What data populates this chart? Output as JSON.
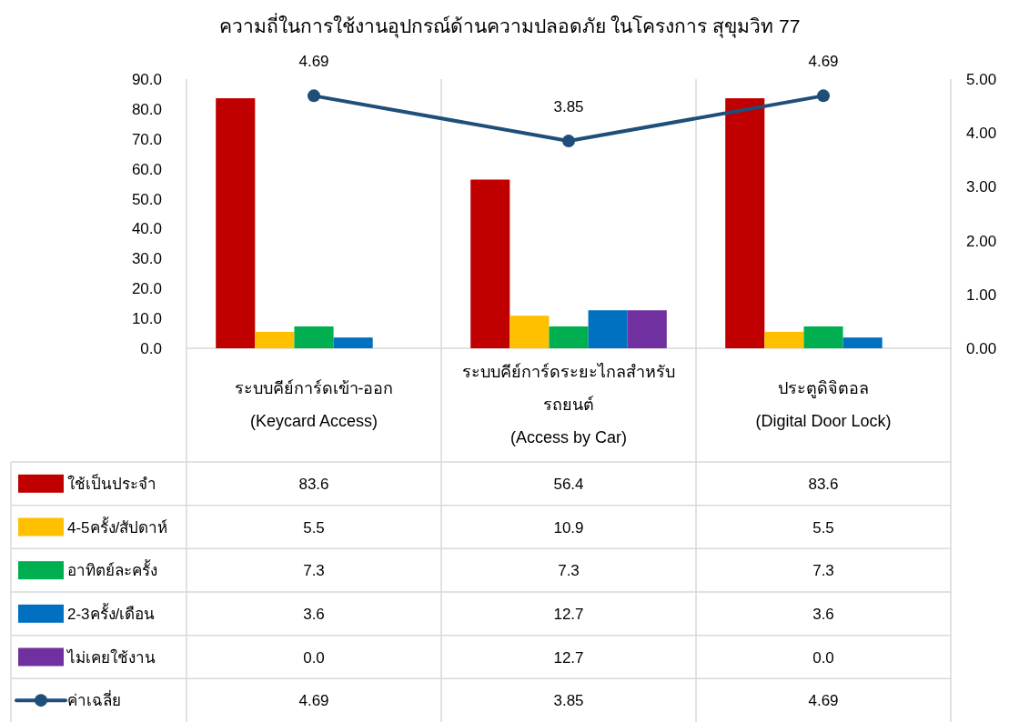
{
  "chart_data": {
    "type": "bar",
    "title": "ความถี่ในการใช้งานอุปกรณ์ด้านความปลอดภัย ในโครงการ สุขุมวิท 77",
    "categories": [
      "ระบบคีย์การ์ดเข้า-ออก\n(Keycard Access)",
      "ระบบคีย์การ์ดระยะไกลสำหรับ\nรถยนต์\n(Access by Car)",
      "ประตูดิจิตอล\n(Digital Door Lock)"
    ],
    "series": [
      {
        "name": "ใช้เป็นประจำ",
        "color": "#c00000",
        "values": [
          83.6,
          56.4,
          83.6
        ],
        "value_labels": [
          "83.6",
          "56.4",
          "83.6"
        ]
      },
      {
        "name": "4-5ครั้ง/สัปดาห์",
        "color": "#ffc000",
        "values": [
          5.5,
          10.9,
          5.5
        ],
        "value_labels": [
          "5.5",
          "10.9",
          "5.5"
        ]
      },
      {
        "name": "อาทิตย์ละครั้ง",
        "color": "#00b050",
        "values": [
          7.3,
          7.3,
          7.3
        ],
        "value_labels": [
          "7.3",
          "7.3",
          "7.3"
        ]
      },
      {
        "name": "2-3ครั้ง/เดือน",
        "color": "#0070c0",
        "values": [
          3.6,
          12.7,
          3.6
        ],
        "value_labels": [
          "3.6",
          "12.7",
          "3.6"
        ]
      },
      {
        "name": "ไม่เคยใช้งาน",
        "color": "#7030a0",
        "values": [
          0,
          12.7,
          0
        ],
        "value_labels": [
          "0.0",
          "12.7",
          "0.0"
        ]
      },
      {
        "name": "ค่าเฉลี่ย",
        "type": "line",
        "axis": "y2",
        "marker": "circle",
        "color": "#1f4e79",
        "values": [
          4.69,
          3.85,
          4.69
        ],
        "value_labels": [
          "4.69",
          "3.85",
          "4.69"
        ]
      }
    ],
    "ylim": [
      0,
      90
    ],
    "yticks": [
      {
        "value": 0,
        "label": "0.0"
      },
      {
        "value": 10,
        "label": "10.0"
      },
      {
        "value": 20,
        "label": "20.0"
      },
      {
        "value": 30,
        "label": "30.0"
      },
      {
        "value": 40,
        "label": "40.0"
      },
      {
        "value": 50,
        "label": "50.0"
      },
      {
        "value": 60,
        "label": "60.0"
      },
      {
        "value": 70,
        "label": "70.0"
      },
      {
        "value": 80,
        "label": "80.0"
      },
      {
        "value": 90,
        "label": "90.0"
      }
    ],
    "y2lim": [
      0,
      5
    ],
    "y2ticks": [
      {
        "value": 0,
        "label": "0.00"
      },
      {
        "value": 1,
        "label": "1.00"
      },
      {
        "value": 2,
        "label": "2.00"
      },
      {
        "value": 3,
        "label": "3.00"
      },
      {
        "value": 4,
        "label": "4.00"
      },
      {
        "value": 5,
        "label": "5.00"
      }
    ],
    "legend": "bottom",
    "grid": false
  }
}
